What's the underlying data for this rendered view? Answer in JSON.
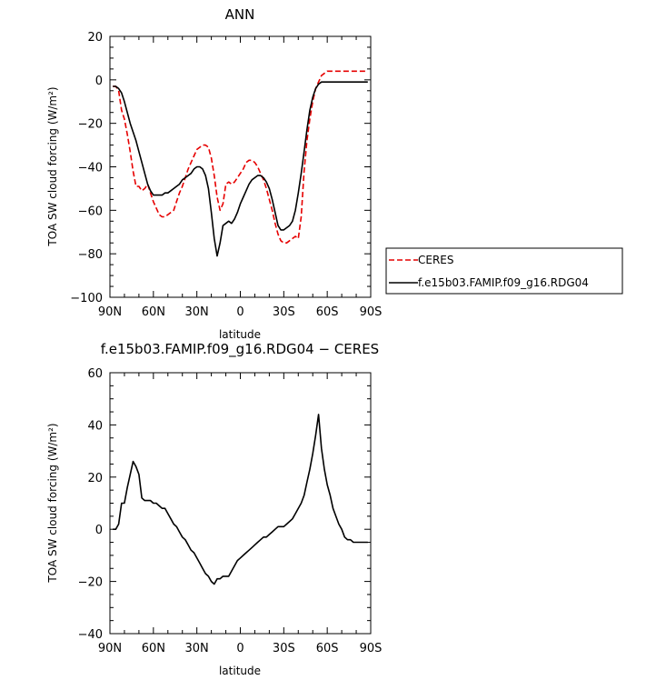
{
  "chart_data": [
    {
      "type": "line",
      "title": "ANN",
      "xlabel": "latitude",
      "ylabel": "TOA SW cloud forcing (W/m²)",
      "xlim": [
        90,
        -90
      ],
      "ylim": [
        -100,
        20
      ],
      "x_tick_values": [
        90,
        60,
        30,
        0,
        -30,
        -60,
        -90
      ],
      "x_tick_labels": [
        "90N",
        "60N",
        "30N",
        "0",
        "30S",
        "60S",
        "90S"
      ],
      "y_tick_values": [
        20,
        0,
        -20,
        -40,
        -60,
        -80,
        -100
      ],
      "y_tick_labels": [
        "20",
        "0",
        "−20",
        "−40",
        "−60",
        "−80",
        "−100"
      ],
      "legend": {
        "placement": "right",
        "entries": [
          "CERES",
          "f.e15b03.FAMIP.f09_g16.RDG04"
        ]
      },
      "series": [
        {
          "name": "CERES",
          "color": "#e60000",
          "dash": "dashed",
          "x": [
            88,
            86,
            84,
            82,
            80,
            78,
            76,
            74,
            72,
            70,
            68,
            66,
            64,
            62,
            60,
            58,
            56,
            54,
            52,
            50,
            48,
            46,
            44,
            42,
            40,
            38,
            36,
            34,
            32,
            30,
            28,
            26,
            24,
            22,
            20,
            18,
            16,
            14,
            12,
            10,
            8,
            6,
            4,
            2,
            0,
            -2,
            -4,
            -6,
            -8,
            -10,
            -12,
            -14,
            -16,
            -18,
            -20,
            -22,
            -24,
            -26,
            -28,
            -30,
            -32,
            -34,
            -36,
            -38,
            -40,
            -42,
            -44,
            -46,
            -48,
            -50,
            -52,
            -54,
            -56,
            -58,
            -60,
            -62,
            -64,
            -66,
            -68,
            -70,
            -72,
            -74,
            -76,
            -78,
            -80,
            -82,
            -84,
            -86,
            -88
          ],
          "values": [
            -3,
            -3,
            -5,
            -14,
            -18,
            -25,
            -33,
            -42,
            -49,
            -49,
            -51,
            -50,
            -48,
            -52,
            -56,
            -59,
            -62,
            -63,
            -63,
            -62,
            -61,
            -60,
            -56,
            -52,
            -49,
            -45,
            -41,
            -38,
            -35,
            -32,
            -31,
            -30,
            -30,
            -31,
            -36,
            -44,
            -54,
            -60,
            -57,
            -48,
            -47,
            -48,
            -47,
            -45,
            -43,
            -41,
            -38,
            -37,
            -37,
            -38,
            -40,
            -43,
            -46,
            -50,
            -55,
            -60,
            -66,
            -71,
            -74,
            -75,
            -75,
            -74,
            -73,
            -72,
            -73,
            -63,
            -42,
            -28,
            -18,
            -10,
            -4,
            -1,
            2,
            3,
            4,
            4,
            4,
            4,
            4,
            4,
            4,
            4,
            4,
            4,
            4,
            4,
            4,
            4,
            4
          ]
        },
        {
          "name": "f.e15b03.FAMIP.f09_g16.RDG04",
          "color": "#000000",
          "dash": "solid",
          "x": [
            88,
            86,
            84,
            82,
            80,
            78,
            76,
            74,
            72,
            70,
            68,
            66,
            64,
            62,
            60,
            58,
            56,
            54,
            52,
            50,
            48,
            46,
            44,
            42,
            40,
            38,
            36,
            34,
            32,
            30,
            28,
            26,
            24,
            22,
            20,
            18,
            16,
            14,
            12,
            10,
            8,
            6,
            4,
            2,
            0,
            -2,
            -4,
            -6,
            -8,
            -10,
            -12,
            -14,
            -16,
            -18,
            -20,
            -22,
            -24,
            -26,
            -28,
            -30,
            -32,
            -34,
            -36,
            -38,
            -40,
            -42,
            -44,
            -46,
            -48,
            -50,
            -52,
            -54,
            -56,
            -58,
            -60,
            -62,
            -64,
            -66,
            -68,
            -70,
            -72,
            -74,
            -76,
            -78,
            -80,
            -82,
            -84,
            -86,
            -88
          ],
          "values": [
            -3,
            -3,
            -4,
            -6,
            -10,
            -15,
            -20,
            -24,
            -28,
            -33,
            -38,
            -43,
            -48,
            -51,
            -53,
            -53,
            -53,
            -53,
            -52,
            -52,
            -51,
            -50,
            -49,
            -48,
            -46,
            -45,
            -44,
            -43,
            -41,
            -40,
            -40,
            -41,
            -44,
            -50,
            -61,
            -73,
            -81,
            -75,
            -67,
            -66,
            -65,
            -66,
            -64,
            -61,
            -57,
            -54,
            -51,
            -48,
            -46,
            -45,
            -44,
            -44,
            -45,
            -47,
            -50,
            -55,
            -61,
            -67,
            -69,
            -69,
            -68,
            -67,
            -65,
            -60,
            -52,
            -43,
            -33,
            -23,
            -14,
            -8,
            -4,
            -2,
            -1,
            -1,
            -1,
            -1,
            -1,
            -1,
            -1,
            -1,
            -1,
            -1,
            -1,
            -1,
            -1,
            -1,
            -1,
            -1,
            -1
          ]
        }
      ]
    },
    {
      "type": "line",
      "title": "f.e15b03.FAMIP.f09_g16.RDG04 − CERES",
      "xlabel": "latitude",
      "ylabel": "TOA SW cloud forcing (W/m²)",
      "xlim": [
        90,
        -90
      ],
      "ylim": [
        -40,
        60
      ],
      "x_tick_values": [
        90,
        60,
        30,
        0,
        -30,
        -60,
        -90
      ],
      "x_tick_labels": [
        "90N",
        "60N",
        "30N",
        "0",
        "30S",
        "60S",
        "90S"
      ],
      "y_tick_values": [
        60,
        40,
        20,
        0,
        -20,
        -40
      ],
      "y_tick_labels": [
        "60",
        "40",
        "20",
        "0",
        "−20",
        "−40"
      ],
      "series": [
        {
          "color": "#000000",
          "dash": "solid",
          "x": [
            88,
            86,
            84,
            82,
            80,
            78,
            76,
            74,
            72,
            70,
            68,
            66,
            64,
            62,
            60,
            58,
            56,
            54,
            52,
            50,
            48,
            46,
            44,
            42,
            40,
            38,
            36,
            34,
            32,
            30,
            28,
            26,
            24,
            22,
            20,
            18,
            16,
            14,
            12,
            10,
            8,
            6,
            4,
            2,
            0,
            -2,
            -4,
            -6,
            -8,
            -10,
            -12,
            -14,
            -16,
            -18,
            -20,
            -22,
            -24,
            -26,
            -28,
            -30,
            -32,
            -34,
            -36,
            -38,
            -40,
            -42,
            -44,
            -46,
            -48,
            -50,
            -52,
            -54,
            -56,
            -58,
            -60,
            -62,
            -64,
            -66,
            -68,
            -70,
            -72,
            -74,
            -76,
            -78,
            -80,
            -82,
            -84,
            -86,
            -88
          ],
          "values": [
            0,
            0,
            2,
            10,
            10,
            16,
            21,
            26,
            24,
            21,
            12,
            11,
            11,
            11,
            10,
            10,
            9,
            8,
            8,
            6,
            4,
            2,
            1,
            -1,
            -3,
            -4,
            -6,
            -8,
            -9,
            -11,
            -13,
            -15,
            -17,
            -18,
            -20,
            -21,
            -19,
            -19,
            -18,
            -18,
            -18,
            -16,
            -14,
            -12,
            -11,
            -10,
            -9,
            -8,
            -7,
            -6,
            -5,
            -4,
            -3,
            -3,
            -2,
            -1,
            0,
            1,
            1,
            1,
            2,
            3,
            4,
            6,
            8,
            10,
            13,
            18,
            23,
            29,
            36,
            44,
            31,
            23,
            17,
            13,
            8,
            5,
            2,
            0,
            -3,
            -4,
            -4,
            -5,
            -5,
            -5,
            -5,
            -5,
            -5
          ]
        }
      ]
    }
  ]
}
